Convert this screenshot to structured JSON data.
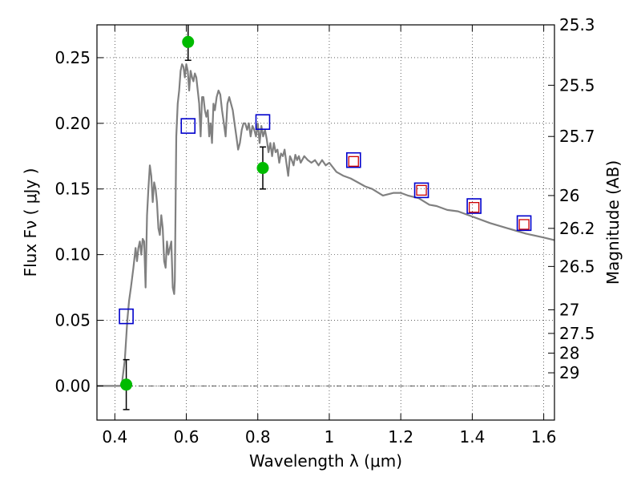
{
  "chart_data": {
    "type": "scatter",
    "xlabel": "Wavelength  λ (μm)",
    "ylabel": "Flux  Fν  ( μJy )",
    "y2label": "Magnitude (AB)",
    "xlim": [
      0.35,
      1.63
    ],
    "ylim": [
      -0.026,
      0.275
    ],
    "x_ticks": [
      0.4,
      0.6,
      0.8,
      1.0,
      1.2,
      1.4,
      1.6
    ],
    "x_tick_labels": [
      "0.4",
      "0.6",
      "0.8",
      "1",
      "1.2",
      "1.4",
      "1.6"
    ],
    "y_ticks": [
      0.0,
      0.05,
      0.1,
      0.15,
      0.2,
      0.25
    ],
    "y_tick_labels": [
      "0.00",
      "0.05",
      "0.10",
      "0.15",
      "0.20",
      "0.25"
    ],
    "y2_ticks": [
      {
        "label": "25.3",
        "flux": 0.275
      },
      {
        "label": "25.5",
        "flux": 0.229
      },
      {
        "label": "25.7",
        "flux": 0.19
      },
      {
        "label": "26",
        "flux": 0.145
      },
      {
        "label": "26.2",
        "flux": 0.12
      },
      {
        "label": "26.5",
        "flux": 0.091
      },
      {
        "label": "27",
        "flux": 0.058
      },
      {
        "label": "27.5",
        "flux": 0.04
      },
      {
        "label": "28",
        "flux": 0.025
      },
      {
        "label": "29",
        "flux": 0.01
      }
    ],
    "grid": true,
    "series": [
      {
        "kind": "spectrum",
        "color": "#808080",
        "x": [
          0.35,
          0.4,
          0.415,
          0.42,
          0.428,
          0.435,
          0.44,
          0.445,
          0.452,
          0.458,
          0.462,
          0.466,
          0.47,
          0.474,
          0.478,
          0.482,
          0.486,
          0.49,
          0.494,
          0.498,
          0.502,
          0.506,
          0.51,
          0.514,
          0.518,
          0.522,
          0.526,
          0.53,
          0.534,
          0.538,
          0.542,
          0.546,
          0.55,
          0.554,
          0.558,
          0.562,
          0.566,
          0.568,
          0.572,
          0.576,
          0.58,
          0.584,
          0.588,
          0.592,
          0.596,
          0.6,
          0.604,
          0.608,
          0.612,
          0.616,
          0.62,
          0.624,
          0.628,
          0.632,
          0.636,
          0.64,
          0.644,
          0.648,
          0.652,
          0.656,
          0.66,
          0.664,
          0.668,
          0.672,
          0.676,
          0.68,
          0.685,
          0.69,
          0.695,
          0.7,
          0.705,
          0.71,
          0.715,
          0.72,
          0.725,
          0.73,
          0.735,
          0.74,
          0.745,
          0.75,
          0.755,
          0.76,
          0.765,
          0.77,
          0.775,
          0.78,
          0.785,
          0.79,
          0.795,
          0.8,
          0.805,
          0.81,
          0.815,
          0.82,
          0.825,
          0.83,
          0.835,
          0.84,
          0.845,
          0.85,
          0.855,
          0.86,
          0.865,
          0.87,
          0.875,
          0.88,
          0.885,
          0.89,
          0.895,
          0.9,
          0.905,
          0.91,
          0.915,
          0.92,
          0.93,
          0.94,
          0.95,
          0.96,
          0.97,
          0.98,
          0.99,
          1.0,
          1.02,
          1.04,
          1.06,
          1.08,
          1.1,
          1.12,
          1.15,
          1.18,
          1.2,
          1.22,
          1.25,
          1.28,
          1.3,
          1.33,
          1.36,
          1.4,
          1.45,
          1.5,
          1.55,
          1.6,
          1.63
        ],
        "y": [
          0.0,
          0.0,
          0.0,
          0.002,
          0.02,
          0.05,
          0.065,
          0.075,
          0.09,
          0.105,
          0.095,
          0.105,
          0.11,
          0.1,
          0.112,
          0.11,
          0.075,
          0.13,
          0.15,
          0.168,
          0.16,
          0.14,
          0.155,
          0.15,
          0.14,
          0.12,
          0.115,
          0.13,
          0.12,
          0.095,
          0.09,
          0.11,
          0.1,
          0.105,
          0.11,
          0.075,
          0.07,
          0.08,
          0.19,
          0.215,
          0.225,
          0.24,
          0.245,
          0.243,
          0.235,
          0.245,
          0.24,
          0.225,
          0.24,
          0.235,
          0.232,
          0.238,
          0.235,
          0.225,
          0.215,
          0.19,
          0.22,
          0.22,
          0.21,
          0.205,
          0.21,
          0.19,
          0.2,
          0.185,
          0.215,
          0.21,
          0.22,
          0.225,
          0.222,
          0.21,
          0.2,
          0.19,
          0.215,
          0.22,
          0.215,
          0.21,
          0.2,
          0.19,
          0.18,
          0.185,
          0.195,
          0.2,
          0.2,
          0.195,
          0.2,
          0.19,
          0.198,
          0.195,
          0.19,
          0.2,
          0.185,
          0.198,
          0.19,
          0.195,
          0.188,
          0.178,
          0.185,
          0.175,
          0.185,
          0.178,
          0.18,
          0.17,
          0.177,
          0.175,
          0.18,
          0.17,
          0.16,
          0.175,
          0.172,
          0.168,
          0.176,
          0.172,
          0.175,
          0.17,
          0.175,
          0.172,
          0.17,
          0.172,
          0.168,
          0.172,
          0.168,
          0.17,
          0.163,
          0.16,
          0.158,
          0.155,
          0.152,
          0.15,
          0.145,
          0.147,
          0.147,
          0.145,
          0.143,
          0.138,
          0.137,
          0.134,
          0.133,
          0.129,
          0.124,
          0.12,
          0.116,
          0.113,
          0.111
        ]
      },
      {
        "kind": "observed",
        "color": "#00bb00",
        "x": [
          0.432,
          0.605,
          0.814
        ],
        "y": [
          0.001,
          0.262,
          0.166
        ],
        "err": [
          0.019,
          0.014,
          0.016
        ]
      },
      {
        "kind": "model_broadband",
        "color": "#0000cc",
        "x": [
          0.432,
          0.605,
          0.814,
          1.068,
          1.258,
          1.405,
          1.545
        ],
        "y": [
          0.053,
          0.198,
          0.201,
          0.172,
          0.149,
          0.137,
          0.124
        ]
      },
      {
        "kind": "model_narrow",
        "color": "#cc0000",
        "x": [
          1.068,
          1.258,
          1.405,
          1.545
        ],
        "y": [
          0.171,
          0.149,
          0.136,
          0.123
        ]
      }
    ]
  }
}
